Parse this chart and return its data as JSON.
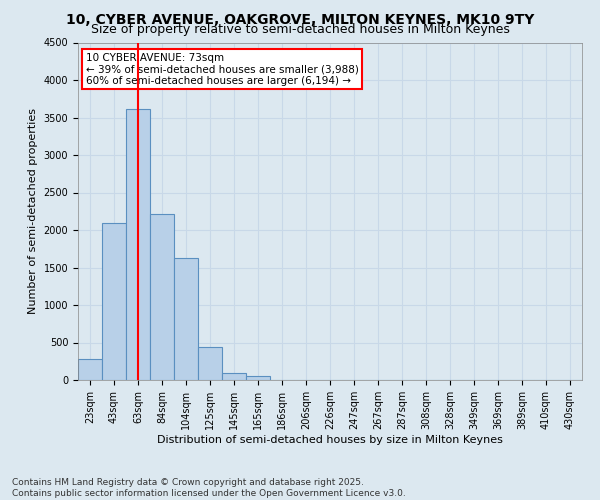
{
  "title": "10, CYBER AVENUE, OAKGROVE, MILTON KEYNES, MK10 9TY",
  "subtitle": "Size of property relative to semi-detached houses in Milton Keynes",
  "xlabel": "Distribution of semi-detached houses by size in Milton Keynes",
  "ylabel": "Number of semi-detached properties",
  "footer": "Contains HM Land Registry data © Crown copyright and database right 2025.\nContains public sector information licensed under the Open Government Licence v3.0.",
  "bin_labels": [
    "23sqm",
    "43sqm",
    "63sqm",
    "84sqm",
    "104sqm",
    "125sqm",
    "145sqm",
    "165sqm",
    "186sqm",
    "206sqm",
    "226sqm",
    "247sqm",
    "267sqm",
    "287sqm",
    "308sqm",
    "328sqm",
    "349sqm",
    "369sqm",
    "389sqm",
    "410sqm",
    "430sqm"
  ],
  "bar_values": [
    280,
    2100,
    3620,
    2220,
    1630,
    440,
    100,
    55,
    0,
    0,
    0,
    0,
    0,
    0,
    0,
    0,
    0,
    0,
    0,
    0,
    0
  ],
  "bar_color": "#b8d0e8",
  "bar_edge_color": "#5a8fc0",
  "ylim": [
    0,
    4500
  ],
  "yticks": [
    0,
    500,
    1000,
    1500,
    2000,
    2500,
    3000,
    3500,
    4000,
    4500
  ],
  "red_line_x": 2,
  "annotation_title": "10 CYBER AVENUE: 73sqm",
  "annotation_line1": "← 39% of semi-detached houses are smaller (3,988)",
  "annotation_line2": "60% of semi-detached houses are larger (6,194) →",
  "annotation_box_color": "white",
  "annotation_box_edge_color": "red",
  "grid_color": "#c8d8e8",
  "background_color": "#dce8f0",
  "title_fontsize": 10,
  "subtitle_fontsize": 9,
  "axis_label_fontsize": 8,
  "tick_fontsize": 7,
  "annotation_fontsize": 7.5,
  "footer_fontsize": 6.5
}
